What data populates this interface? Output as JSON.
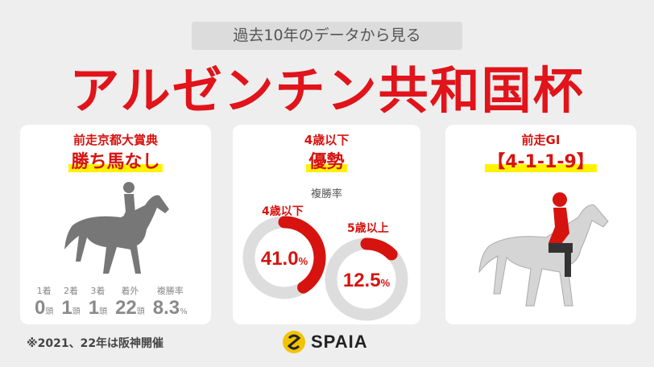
{
  "header": {
    "subtitle": "過去10年のデータから見る",
    "title": "アルゼンチン共和国杯"
  },
  "cards": [
    {
      "heading": "前走京都大賞典",
      "highlight": "勝ち馬なし",
      "stats": [
        {
          "label": "1着",
          "value": "0",
          "unit": "頭"
        },
        {
          "label": "2着",
          "value": "1",
          "unit": "頭"
        },
        {
          "label": "3着",
          "value": "1",
          "unit": "頭"
        },
        {
          "label": "着外",
          "value": "22",
          "unit": "頭"
        },
        {
          "label": "複勝率",
          "value": "8.3",
          "unit": "%"
        }
      ]
    },
    {
      "heading": "4歳以下",
      "highlight": "優勢",
      "metric": "複勝率",
      "donuts": [
        {
          "label": "4歳以下",
          "value": "41.0",
          "unit": "%",
          "fraction": 0.41
        },
        {
          "label": "5歳以上",
          "value": "12.5",
          "unit": "%",
          "fraction": 0.125
        }
      ]
    },
    {
      "heading": "前走GI",
      "highlight": "【4-1-1-9】"
    }
  ],
  "footnote": "※2021、22年は阪神開催",
  "logo": "SPAIA",
  "colors": {
    "accent": "#d6130f",
    "highlight": "#fff200",
    "track": "#dddddd"
  }
}
